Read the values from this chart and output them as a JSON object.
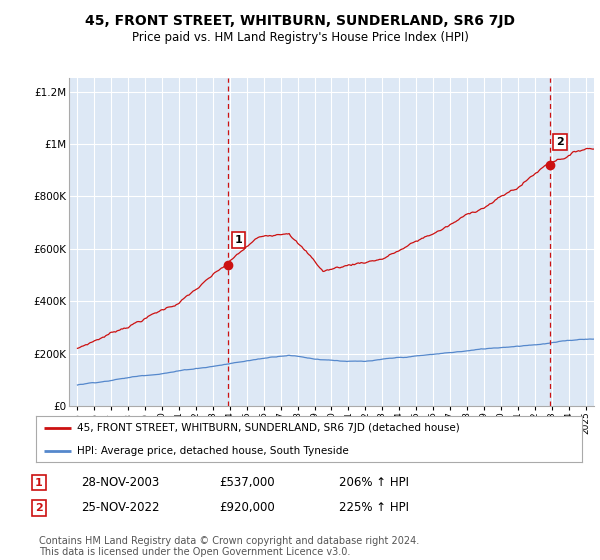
{
  "title": "45, FRONT STREET, WHITBURN, SUNDERLAND, SR6 7JD",
  "subtitle": "Price paid vs. HM Land Registry's House Price Index (HPI)",
  "title_fontsize": 10,
  "subtitle_fontsize": 8.5,
  "background_color": "#ffffff",
  "plot_bg_color": "#dde8f5",
  "grid_color": "#ffffff",
  "hpi_line_color": "#5588cc",
  "price_line_color": "#cc1111",
  "ylim": [
    0,
    1250000
  ],
  "yticks": [
    0,
    200000,
    400000,
    600000,
    800000,
    1000000,
    1200000
  ],
  "ytick_labels": [
    "£0",
    "£200K",
    "£400K",
    "£600K",
    "£800K",
    "£1M",
    "£1.2M"
  ],
  "xlim_start": 1994.5,
  "xlim_end": 2025.5,
  "xtick_years": [
    1995,
    1996,
    1997,
    1998,
    1999,
    2000,
    2001,
    2002,
    2003,
    2004,
    2005,
    2006,
    2007,
    2008,
    2009,
    2010,
    2011,
    2012,
    2013,
    2014,
    2015,
    2016,
    2017,
    2018,
    2019,
    2020,
    2021,
    2022,
    2023,
    2024,
    2025
  ],
  "sale1_x": 2003.91,
  "sale1_y": 537000,
  "sale1_label": "1",
  "sale2_x": 2022.91,
  "sale2_y": 920000,
  "sale2_label": "2",
  "marker_color": "#cc1111",
  "vline_color": "#cc1111",
  "vline_style": "--",
  "legend_label_red": "45, FRONT STREET, WHITBURN, SUNDERLAND, SR6 7JD (detached house)",
  "legend_label_blue": "HPI: Average price, detached house, South Tyneside",
  "table_rows": [
    {
      "num": "1",
      "date": "28-NOV-2003",
      "price": "£537,000",
      "hpi": "206% ↑ HPI"
    },
    {
      "num": "2",
      "date": "25-NOV-2022",
      "price": "£920,000",
      "hpi": "225% ↑ HPI"
    }
  ],
  "footnote": "Contains HM Land Registry data © Crown copyright and database right 2024.\nThis data is licensed under the Open Government Licence v3.0.",
  "footnote_fontsize": 7
}
